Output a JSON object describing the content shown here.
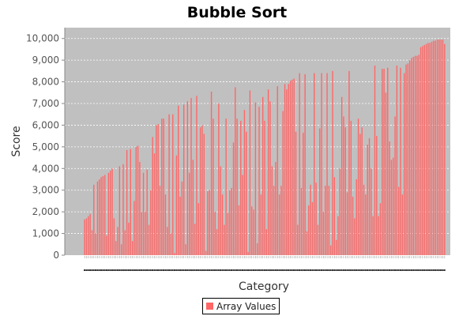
{
  "chart_data": {
    "type": "bar",
    "title": "Bubble Sort",
    "xlabel": "Category",
    "ylabel": "Score",
    "ylim": [
      0,
      10500
    ],
    "yticks": [
      "0",
      "1,000",
      "2,000",
      "3,000",
      "4,000",
      "5,000",
      "6,000",
      "7,000",
      "8,000",
      "9,000",
      "10,000"
    ],
    "ytick_values": [
      0,
      1000,
      2000,
      3000,
      4000,
      5000,
      6000,
      7000,
      8000,
      9000,
      10000
    ],
    "grid": true,
    "legend_position": "bottom-center",
    "series": [
      {
        "name": "Array Values",
        "color": "#ff6666",
        "values": [
          1650,
          1700,
          1800,
          1900,
          1150,
          3250,
          1000,
          3400,
          3500,
          3600,
          3650,
          3700,
          900,
          3800,
          3900,
          4000,
          1700,
          650,
          1300,
          4100,
          500,
          4200,
          1150,
          4850,
          1500,
          4900,
          650,
          2500,
          5000,
          5050,
          4300,
          2000,
          3800,
          2000,
          3950,
          1400,
          3000,
          5450,
          4700,
          6000,
          6050,
          3200,
          6300,
          6300,
          2800,
          1300,
          6500,
          1000,
          6500,
          100,
          4600,
          6900,
          2700,
          3400,
          6950,
          500,
          7100,
          3800,
          7250,
          4400,
          1450,
          7350,
          2400,
          5900,
          6000,
          5600,
          200,
          2950,
          3000,
          7550,
          6300,
          2000,
          1200,
          7000,
          4100,
          2800,
          1400,
          6300,
          1950,
          3000,
          3100,
          5200,
          7750,
          6300,
          2300,
          6200,
          3700,
          6700,
          5700,
          150,
          7600,
          2250,
          2100,
          7050,
          550,
          6850,
          2800,
          7300,
          6200,
          1200,
          7650,
          7100,
          4100,
          3200,
          4300,
          7800,
          2800,
          3200,
          6650,
          7900,
          7650,
          7900,
          8050,
          8100,
          8150,
          5700,
          1400,
          8400,
          3100,
          5650,
          8350,
          1100,
          2300,
          3250,
          2450,
          8400,
          3350,
          1400,
          5850,
          8400,
          2000,
          3200,
          8400,
          3200,
          450,
          8500,
          3600,
          700,
          1800,
          4000,
          7300,
          6400,
          5900,
          2900,
          8500,
          6200,
          2700,
          1700,
          3500,
          6300,
          5600,
          5900,
          3250,
          2800,
          5100,
          5400,
          4000,
          1800,
          8750,
          5500,
          1800,
          2400,
          8600,
          8600,
          7500,
          8650,
          5250,
          4400,
          4500,
          6400,
          8750,
          3150,
          8650,
          2800,
          8400,
          8800,
          8850,
          9000,
          9100,
          9150,
          9200,
          9200,
          9250,
          9600,
          9650,
          9700,
          9750,
          9800,
          9800,
          9850,
          9900,
          9900,
          9950,
          9950,
          9950,
          9950,
          9750
        ]
      }
    ]
  }
}
